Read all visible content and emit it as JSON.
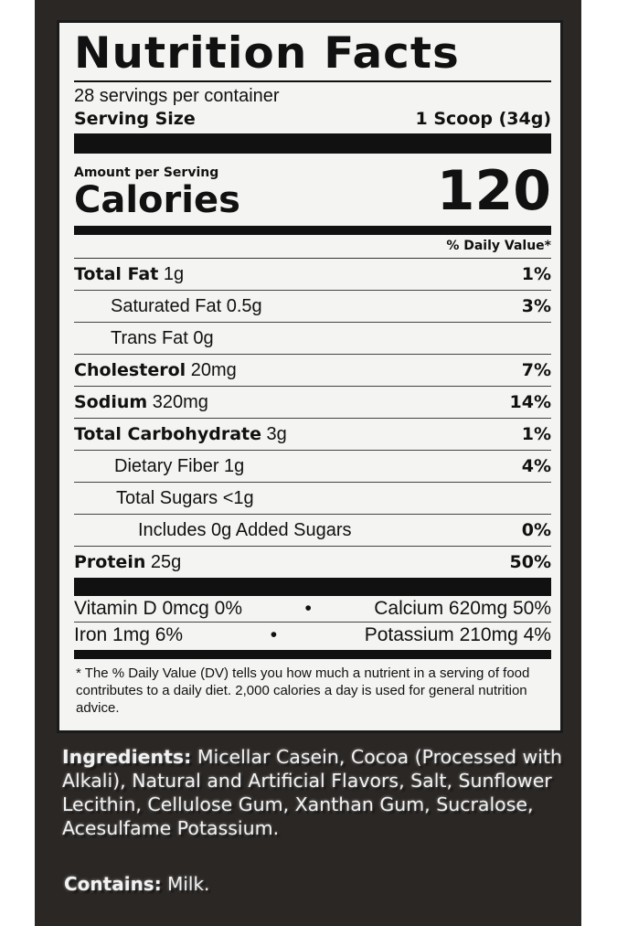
{
  "label": {
    "title": "Nutrition Facts",
    "servings": "28 servings per container",
    "serving_size_label": "Serving Size",
    "serving_size_value": "1 Scoop (34g)",
    "amount_per_serving": "Amount per Serving",
    "calories_label": "Calories",
    "calories_value": "120",
    "dv_header": "% Daily Value*",
    "nutrients": [
      {
        "name": "Total Fat",
        "amount": "1g",
        "dv": "1%"
      },
      {
        "name": "Saturated Fat",
        "amount": "0.5g",
        "dv": "3%"
      },
      {
        "name": "Trans Fat",
        "amount": "0g",
        "dv": ""
      },
      {
        "name": "Cholesterol",
        "amount": "20mg",
        "dv": "7%"
      },
      {
        "name": "Sodium",
        "amount": "320mg",
        "dv": "14%"
      },
      {
        "name": "Total Carbohydrate",
        "amount": "3g",
        "dv": "1%"
      },
      {
        "name": "Dietary Fiber",
        "amount": "1g",
        "dv": "4%"
      },
      {
        "name": "Total Sugars",
        "amount": "<1g",
        "dv": ""
      },
      {
        "name": "Includes 0g Added Sugars",
        "amount": "",
        "dv": "0%"
      },
      {
        "name": "Protein",
        "amount": "25g",
        "dv": "50%"
      }
    ],
    "vitamins": [
      {
        "left": "Vitamin D 0mcg 0%",
        "right": "Calcium 620mg 50%"
      },
      {
        "left": "Iron 1mg 6%",
        "right": "Potassium 210mg 4%"
      }
    ],
    "bullet": "•",
    "footnote": "* The % Daily Value (DV) tells you how much a nutrient in a serving of food contributes to a daily diet. 2,000 calories a day is used for general nutrition advice."
  },
  "ingredients": {
    "label": "Ingredients:",
    "text": " Micellar Casein, Cocoa (Processed with Alkali), Natural and Artificial Flavors, Salt, Sunflower Lecithin, Cellulose Gum, Xanthan Gum, Sucralose, Acesulfame Potassium."
  },
  "contains": {
    "label": "Contains:",
    "text": " Milk."
  }
}
